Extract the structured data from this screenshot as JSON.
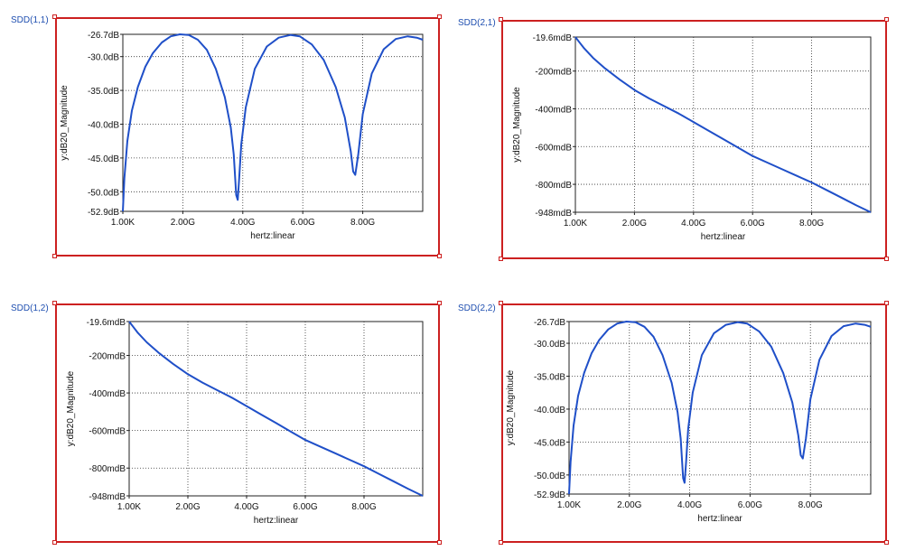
{
  "charts": [
    {
      "id": "sdd11",
      "panel_title": "SDD(1,1)",
      "chart_data": {
        "type": "line",
        "xlabel": "hertz:linear",
        "ylabel": "y:dB20_Magnitude",
        "xlim": [
          1e-06,
          10.0
        ],
        "ylim": [
          -52.9,
          -26.7
        ],
        "xticks": [
          {
            "v": 1e-06,
            "label": "1.00K"
          },
          {
            "v": 2,
            "label": "2.00G"
          },
          {
            "v": 4,
            "label": "4.00G"
          },
          {
            "v": 6,
            "label": "6.00G"
          },
          {
            "v": 8,
            "label": "8.00G"
          }
        ],
        "yticks": [
          {
            "v": -26.7,
            "label": "-26.7dB"
          },
          {
            "v": -30,
            "label": "-30.0dB"
          },
          {
            "v": -35,
            "label": "-35.0dB"
          },
          {
            "v": -40,
            "label": "-40.0dB"
          },
          {
            "v": -45,
            "label": "-45.0dB"
          },
          {
            "v": -50,
            "label": "-50.0dB"
          },
          {
            "v": -52.9,
            "label": "-52.9dB"
          }
        ],
        "x_unit": "GHz",
        "series": [
          {
            "color": "#1f4fc8",
            "x": [
              0.0,
              0.05,
              0.15,
              0.3,
              0.5,
              0.75,
              1.0,
              1.3,
              1.6,
              1.9,
              2.2,
              2.5,
              2.8,
              3.1,
              3.4,
              3.6,
              3.7,
              3.78,
              3.83,
              3.88,
              3.95,
              4.1,
              4.4,
              4.8,
              5.2,
              5.6,
              5.9,
              6.3,
              6.7,
              7.1,
              7.4,
              7.6,
              7.68,
              7.75,
              7.85,
              8.0,
              8.3,
              8.7,
              9.1,
              9.5,
              9.8,
              10.0
            ],
            "y": [
              -52.9,
              -48.0,
              -42.5,
              -38.0,
              -34.5,
              -31.5,
              -29.5,
              -27.9,
              -27.0,
              -26.7,
              -26.8,
              -27.5,
              -29.0,
              -31.8,
              -36.0,
              -40.5,
              -44.5,
              -50.5,
              -51.2,
              -48.0,
              -43.0,
              -37.5,
              -31.8,
              -28.5,
              -27.2,
              -26.8,
              -27.0,
              -28.2,
              -30.5,
              -34.5,
              -39.0,
              -44.0,
              -47.0,
              -47.5,
              -44.5,
              -38.5,
              -32.5,
              -28.9,
              -27.4,
              -27.0,
              -27.2,
              -27.5
            ]
          }
        ]
      }
    },
    {
      "id": "sdd21",
      "panel_title": "SDD(2,1)",
      "chart_data": {
        "type": "line",
        "xlabel": "hertz:linear",
        "ylabel": "y:dB20_Magnitude",
        "xlim": [
          1e-06,
          10.0
        ],
        "ylim": [
          -948,
          -19.6
        ],
        "xticks": [
          {
            "v": 1e-06,
            "label": "1.00K"
          },
          {
            "v": 2,
            "label": "2.00G"
          },
          {
            "v": 4,
            "label": "4.00G"
          },
          {
            "v": 6,
            "label": "6.00G"
          },
          {
            "v": 8,
            "label": "8.00G"
          }
        ],
        "yticks": [
          {
            "v": -19.6,
            "label": "-19.6mdB"
          },
          {
            "v": -200,
            "label": "-200mdB"
          },
          {
            "v": -400,
            "label": "-400mdB"
          },
          {
            "v": -600,
            "label": "-600mdB"
          },
          {
            "v": -800,
            "label": "-800mdB"
          },
          {
            "v": -948,
            "label": "-948mdB"
          }
        ],
        "x_unit": "GHz",
        "y_unit": "mdB",
        "series": [
          {
            "color": "#1f4fc8",
            "x": [
              0.0,
              0.1,
              0.3,
              0.6,
              1.0,
              1.5,
              2.0,
              2.5,
              3.0,
              3.5,
              4.0,
              4.5,
              5.0,
              5.5,
              6.0,
              6.5,
              7.0,
              7.5,
              8.0,
              8.5,
              9.0,
              9.5,
              10.0
            ],
            "y": [
              -19.6,
              -40,
              -80,
              -130,
              -185,
              -245,
              -300,
              -345,
              -385,
              -425,
              -470,
              -515,
              -560,
              -605,
              -650,
              -685,
              -720,
              -755,
              -790,
              -830,
              -870,
              -910,
              -948
            ]
          }
        ]
      }
    },
    {
      "id": "sdd12",
      "panel_title": "SDD(1,2)",
      "chart_data": {
        "type": "line",
        "xlabel": "hertz:linear",
        "ylabel": "y:dB20_Magnitude",
        "xlim": [
          1e-06,
          10.0
        ],
        "ylim": [
          -948,
          -19.6
        ],
        "xticks": [
          {
            "v": 1e-06,
            "label": "1.00K"
          },
          {
            "v": 2,
            "label": "2.00G"
          },
          {
            "v": 4,
            "label": "4.00G"
          },
          {
            "v": 6,
            "label": "6.00G"
          },
          {
            "v": 8,
            "label": "8.00G"
          }
        ],
        "yticks": [
          {
            "v": -19.6,
            "label": "-19.6mdB"
          },
          {
            "v": -200,
            "label": "-200mdB"
          },
          {
            "v": -400,
            "label": "-400mdB"
          },
          {
            "v": -600,
            "label": "-600mdB"
          },
          {
            "v": -800,
            "label": "-800mdB"
          },
          {
            "v": -948,
            "label": "-948mdB"
          }
        ],
        "x_unit": "GHz",
        "y_unit": "mdB",
        "series": [
          {
            "color": "#1f4fc8",
            "x": [
              0.0,
              0.1,
              0.3,
              0.6,
              1.0,
              1.5,
              2.0,
              2.5,
              3.0,
              3.5,
              4.0,
              4.5,
              5.0,
              5.5,
              6.0,
              6.5,
              7.0,
              7.5,
              8.0,
              8.5,
              9.0,
              9.5,
              10.0
            ],
            "y": [
              -19.6,
              -40,
              -80,
              -130,
              -185,
              -245,
              -300,
              -345,
              -385,
              -425,
              -470,
              -515,
              -560,
              -605,
              -650,
              -685,
              -720,
              -755,
              -790,
              -830,
              -870,
              -910,
              -948
            ]
          }
        ]
      }
    },
    {
      "id": "sdd22",
      "panel_title": "SDD(2,2)",
      "chart_data": {
        "type": "line",
        "xlabel": "hertz:linear",
        "ylabel": "y:dB20_Magnitude",
        "xlim": [
          1e-06,
          10.0
        ],
        "ylim": [
          -52.9,
          -26.7
        ],
        "xticks": [
          {
            "v": 1e-06,
            "label": "1.00K"
          },
          {
            "v": 2,
            "label": "2.00G"
          },
          {
            "v": 4,
            "label": "4.00G"
          },
          {
            "v": 6,
            "label": "6.00G"
          },
          {
            "v": 8,
            "label": "8.00G"
          }
        ],
        "yticks": [
          {
            "v": -26.7,
            "label": "-26.7dB"
          },
          {
            "v": -30,
            "label": "-30.0dB"
          },
          {
            "v": -35,
            "label": "-35.0dB"
          },
          {
            "v": -40,
            "label": "-40.0dB"
          },
          {
            "v": -45,
            "label": "-45.0dB"
          },
          {
            "v": -50,
            "label": "-50.0dB"
          },
          {
            "v": -52.9,
            "label": "-52.9dB"
          }
        ],
        "x_unit": "GHz",
        "series": [
          {
            "color": "#1f4fc8",
            "x": [
              0.0,
              0.05,
              0.15,
              0.3,
              0.5,
              0.75,
              1.0,
              1.3,
              1.6,
              1.9,
              2.2,
              2.5,
              2.8,
              3.1,
              3.4,
              3.6,
              3.7,
              3.78,
              3.83,
              3.88,
              3.95,
              4.1,
              4.4,
              4.8,
              5.2,
              5.6,
              5.9,
              6.3,
              6.7,
              7.1,
              7.4,
              7.6,
              7.68,
              7.75,
              7.85,
              8.0,
              8.3,
              8.7,
              9.1,
              9.5,
              9.8,
              10.0
            ],
            "y": [
              -52.9,
              -48.0,
              -42.5,
              -38.0,
              -34.5,
              -31.5,
              -29.5,
              -27.9,
              -27.0,
              -26.7,
              -26.8,
              -27.5,
              -29.0,
              -31.8,
              -36.0,
              -40.5,
              -44.5,
              -50.5,
              -51.2,
              -48.0,
              -43.0,
              -37.5,
              -31.8,
              -28.5,
              -27.2,
              -26.8,
              -27.0,
              -28.2,
              -30.5,
              -34.5,
              -39.0,
              -44.0,
              -47.0,
              -47.5,
              -44.5,
              -38.5,
              -32.5,
              -28.9,
              -27.4,
              -27.0,
              -27.2,
              -27.5
            ]
          }
        ]
      }
    }
  ]
}
